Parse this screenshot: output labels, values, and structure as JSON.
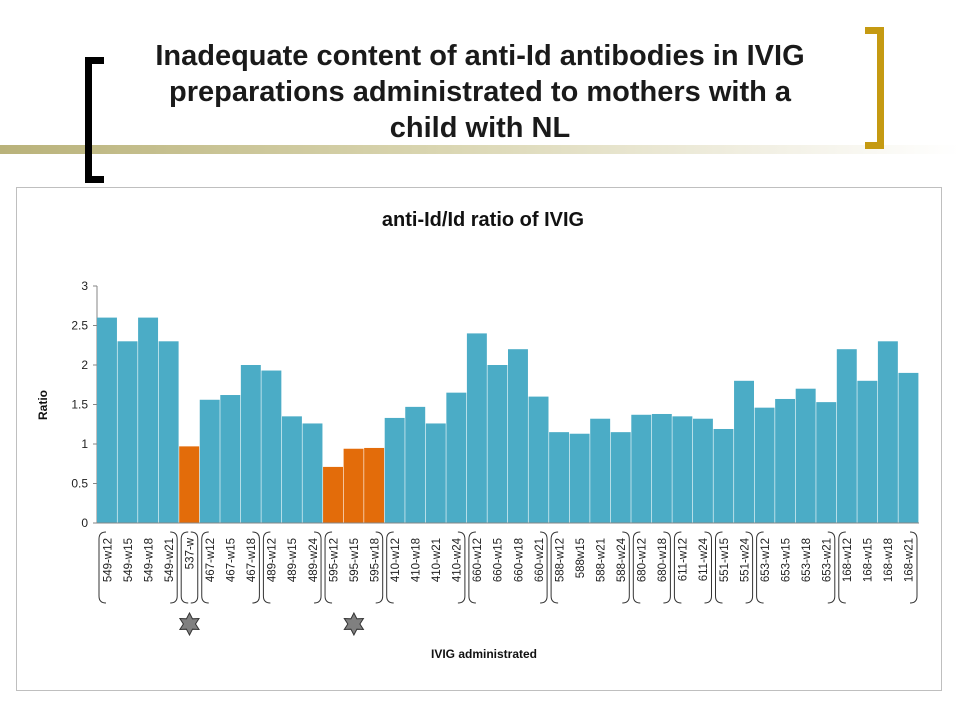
{
  "slide": {
    "title_lines": [
      "Inadequate content of anti-Id antibodies in IVIG",
      "preparations administrated to mothers with a",
      "child with NL"
    ]
  },
  "colors": {
    "bar_default": "#4bacc6",
    "bar_highlight": "#e36c0a",
    "bracket_left": "#000000",
    "bracket_right": "#c59a12",
    "star": "#808080"
  },
  "chart_data": {
    "type": "bar",
    "title": "anti-Id/Id ratio of IVIG",
    "xlabel": "IVIG administrated",
    "ylabel": "Ratio",
    "ylim": [
      0,
      3
    ],
    "yticks": [
      "0",
      "0.5",
      "1",
      "1.5",
      "2",
      "2.5",
      "3"
    ],
    "grid": false,
    "legend": "none",
    "categories": [
      "549-w12",
      "549-w15",
      "549-w18",
      "549-w21",
      "537-w",
      "467-w12",
      "467-w15",
      "467-w18",
      "489-w12",
      "489-w15",
      "489-w24",
      "595-w12",
      "595-w15",
      "595-w18",
      "410-w12",
      "410-w18",
      "410-w21",
      "410-w24",
      "660-w12",
      "660-w15",
      "660-w18",
      "660-w21",
      "588-w12",
      "588w15",
      "588-w21",
      "588-w24",
      "680-w12",
      "680-w18",
      "611-w12",
      "611-w24",
      "551-w15",
      "551-w24",
      "653-w12",
      "653-w15",
      "653-w18",
      "653-w21",
      "168-w12",
      "168-w15",
      "168-w18",
      "168-w21"
    ],
    "values": [
      2.6,
      2.3,
      2.6,
      2.3,
      0.97,
      1.56,
      1.62,
      2.0,
      1.93,
      1.35,
      1.26,
      0.71,
      0.94,
      0.95,
      1.33,
      1.47,
      1.26,
      1.65,
      2.4,
      2.0,
      2.2,
      1.6,
      1.15,
      1.13,
      1.32,
      1.15,
      1.37,
      1.38,
      1.35,
      1.32,
      1.19,
      1.8,
      1.46,
      1.57,
      1.7,
      1.53,
      2.2,
      1.8,
      2.3,
      1.9
    ],
    "highlighted": [
      4,
      11,
      12,
      13
    ],
    "groups": [
      {
        "start": 0,
        "end": 3
      },
      {
        "start": 4,
        "end": 4
      },
      {
        "start": 5,
        "end": 7
      },
      {
        "start": 8,
        "end": 10
      },
      {
        "start": 11,
        "end": 13
      },
      {
        "start": 14,
        "end": 17
      },
      {
        "start": 18,
        "end": 21
      },
      {
        "start": 22,
        "end": 25
      },
      {
        "start": 26,
        "end": 27
      },
      {
        "start": 28,
        "end": 29
      },
      {
        "start": 30,
        "end": 31
      },
      {
        "start": 32,
        "end": 35
      },
      {
        "start": 36,
        "end": 39
      }
    ],
    "star_groups": [
      1,
      4
    ]
  }
}
